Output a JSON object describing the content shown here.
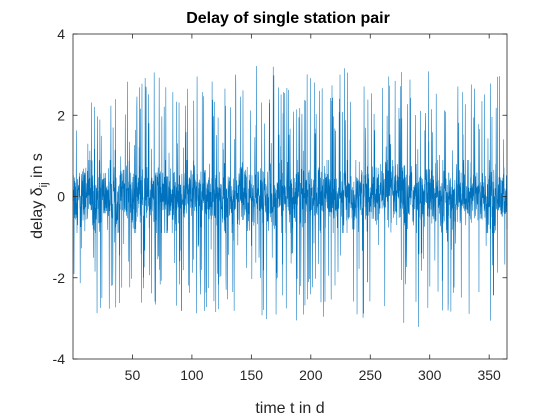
{
  "chart_data": {
    "type": "line",
    "title": "Delay of single station pair",
    "xlabel": "time t in d",
    "ylabel_main": "delay δ",
    "ylabel_sub": "ij",
    "ylabel_unit": " in s",
    "xlim": [
      0,
      365
    ],
    "ylim": [
      -4,
      4
    ],
    "xticks": [
      50,
      100,
      150,
      200,
      250,
      300,
      350
    ],
    "yticks": [
      -4,
      -2,
      0,
      2,
      4
    ],
    "xtick_labels": [
      "50",
      "100",
      "150",
      "200",
      "250",
      "300",
      "350"
    ],
    "ytick_labels": [
      "-4",
      "-2",
      "0",
      "2",
      "4"
    ],
    "grid": false,
    "line_color": "#0072BD",
    "series": [
      {
        "description": "dense noise signal sampled over one year; envelope (max |delay|) per ~10-day window",
        "envelope_x": [
          0,
          10,
          20,
          30,
          40,
          50,
          60,
          70,
          80,
          90,
          100,
          110,
          120,
          130,
          140,
          150,
          160,
          170,
          180,
          190,
          200,
          210,
          220,
          230,
          240,
          250,
          260,
          270,
          280,
          290,
          300,
          310,
          320,
          330,
          340,
          350,
          360,
          365
        ],
        "envelope_max": [
          3.2,
          2.6,
          2.3,
          3.3,
          2.6,
          3.2,
          3.3,
          3.2,
          2.6,
          3.1,
          3.3,
          2.7,
          3.0,
          3.3,
          3.3,
          3.2,
          3.3,
          3.3,
          3.3,
          3.2,
          3.2,
          3.0,
          2.8,
          3.3,
          2.9,
          3.2,
          3.2,
          3.0,
          3.2,
          2.7,
          3.3,
          2.6,
          3.2,
          3.0,
          3.0,
          3.3,
          3.3,
          3.3
        ],
        "envelope_min": [
          -2.9,
          -3.0,
          -3.2,
          -3.2,
          -3.1,
          -3.2,
          -2.8,
          -2.9,
          -2.6,
          -3.1,
          -2.9,
          -3.0,
          -3.0,
          -3.2,
          -2.7,
          -3.2,
          -3.3,
          -3.3,
          -3.3,
          -3.2,
          -2.9,
          -3.0,
          -2.6,
          -3.1,
          -3.2,
          -2.9,
          -2.9,
          -3.2,
          -3.2,
          -3.3,
          -2.8,
          -3.0,
          -2.9,
          -3.3,
          -3.2,
          -3.2,
          -3.3,
          -3.3
        ],
        "core_amplitude": 0.9
      }
    ]
  }
}
